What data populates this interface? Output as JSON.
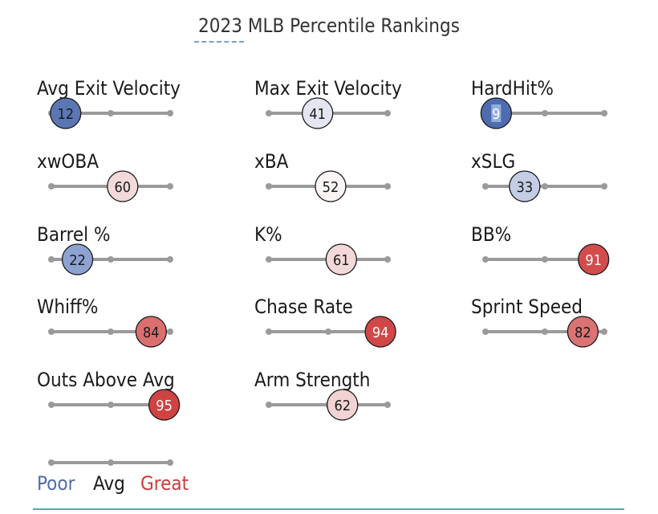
{
  "chart_data": {
    "type": "percentile-rankings",
    "title": "2023 MLB Percentile Rankings",
    "scale": [
      0,
      100
    ],
    "metrics": [
      {
        "label": "Avg Exit Velocity",
        "percentile": 12,
        "color": "#5b76b5",
        "text_color": "#1a1a1a"
      },
      {
        "label": "Max Exit Velocity",
        "percentile": 41,
        "color": "#e3e6f1",
        "text_color": "#1a1a1a"
      },
      {
        "label": "HardHit%",
        "percentile": 9,
        "color": "#4f6cb0",
        "text_color": "#ffffff",
        "highlight": true
      },
      {
        "label": "xwOBA",
        "percentile": 60,
        "color": "#f2dada",
        "text_color": "#1a1a1a"
      },
      {
        "label": "xBA",
        "percentile": 52,
        "color": "#fbf5f5",
        "text_color": "#1a1a1a"
      },
      {
        "label": "xSLG",
        "percentile": 33,
        "color": "#c3cde6",
        "text_color": "#1a1a1a"
      },
      {
        "label": "Barrel %",
        "percentile": 22,
        "color": "#8ea2d2",
        "text_color": "#1a1a1a"
      },
      {
        "label": "K%",
        "percentile": 61,
        "color": "#f2d8d8",
        "text_color": "#1a1a1a"
      },
      {
        "label": "BB%",
        "percentile": 91,
        "color": "#d24c4c",
        "text_color": "#ffffff"
      },
      {
        "label": "Whiff%",
        "percentile": 84,
        "color": "#db6f6f",
        "text_color": "#1a1a1a"
      },
      {
        "label": "Chase Rate",
        "percentile": 94,
        "color": "#d14747",
        "text_color": "#ffffff"
      },
      {
        "label": "Sprint Speed",
        "percentile": 82,
        "color": "#dc7373",
        "text_color": "#1a1a1a"
      },
      {
        "label": "Outs Above Avg",
        "percentile": 95,
        "color": "#cf4343",
        "text_color": "#ffffff"
      },
      {
        "label": "Arm Strength",
        "percentile": 62,
        "color": "#f1d3d3",
        "text_color": "#1a1a1a"
      }
    ],
    "legend": [
      {
        "label": "Poor",
        "color": "#4f6cb0"
      },
      {
        "label": "Avg",
        "color": "#1a1a1a"
      },
      {
        "label": "Great",
        "color": "#cc3b3b"
      }
    ],
    "track_color": "#9a9a9a",
    "accent_rule_color": "#5aa8a8"
  }
}
